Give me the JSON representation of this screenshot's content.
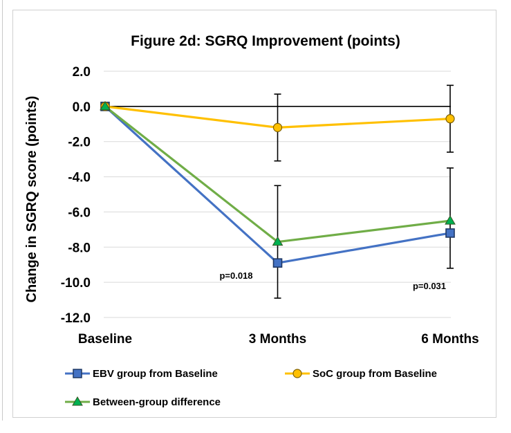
{
  "chart_data": {
    "type": "line",
    "title": "Figure 2d: SGRQ Improvement (points)",
    "xlabel": "",
    "ylabel": "Change in SGRQ score (points)",
    "categories": [
      "Baseline",
      "3 Months",
      "6 Months"
    ],
    "ylim": [
      -12,
      2
    ],
    "yticks": [
      2,
      0,
      -2,
      -4,
      -6,
      -8,
      -10,
      -12
    ],
    "ytick_labels": [
      "2.0",
      "0.0",
      "-2.0",
      "-4.0",
      "-6.0",
      "-8.0",
      "-10.0",
      "-12.0"
    ],
    "grid": true,
    "series": [
      {
        "name": "EBV group from Baseline",
        "marker": "square",
        "color": "#4472c4",
        "values": [
          0,
          -8.9,
          -7.2
        ],
        "error_low": [
          null,
          -10.9,
          -9.2
        ],
        "error_high": [
          null,
          -4.5,
          -3.5
        ]
      },
      {
        "name": "SoC group from Baseline",
        "marker": "circle",
        "color": "#ffc000",
        "values": [
          0,
          -1.2,
          -0.7
        ],
        "error_low": [
          null,
          -3.1,
          -2.6
        ],
        "error_high": [
          null,
          0.7,
          1.2
        ]
      },
      {
        "name": "Between-group difference",
        "marker": "triangle",
        "color": "#70ad47",
        "values": [
          0,
          -7.7,
          -6.5
        ]
      }
    ],
    "annotations": [
      {
        "text": "p=0.018",
        "x": "3 Months",
        "y": -9.6
      },
      {
        "text": "p=0.031",
        "x": "6 Months",
        "y": -10.2
      }
    ],
    "legend_position": "bottom"
  }
}
